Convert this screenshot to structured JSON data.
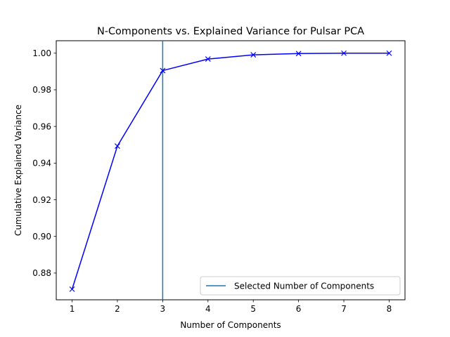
{
  "chart_data": {
    "type": "line",
    "title": "N-Components vs. Explained Variance for Pulsar PCA",
    "xlabel": "Number of Components",
    "ylabel": "Cumulative Explained Variance",
    "x": [
      1,
      2,
      3,
      4,
      5,
      6,
      7,
      8
    ],
    "xlim": [
      0.65,
      8.35
    ],
    "ylim": [
      0.8654,
      1.0068
    ],
    "xticks": [
      "1",
      "2",
      "3",
      "4",
      "5",
      "6",
      "7",
      "8"
    ],
    "yticks": [
      "0.88",
      "0.90",
      "0.92",
      "0.94",
      "0.96",
      "0.98",
      "1.00"
    ],
    "series": [
      {
        "values": [
          0.8712,
          0.9493,
          0.9905,
          0.9968,
          0.9991,
          0.9998,
          1.0,
          1.0
        ],
        "color": "#0000ff",
        "marker": "x"
      }
    ],
    "vline": {
      "x": 3,
      "color": "#1f77b4",
      "name": "Selected Number of Components"
    },
    "grid": false,
    "legend_position": "lower-right"
  }
}
